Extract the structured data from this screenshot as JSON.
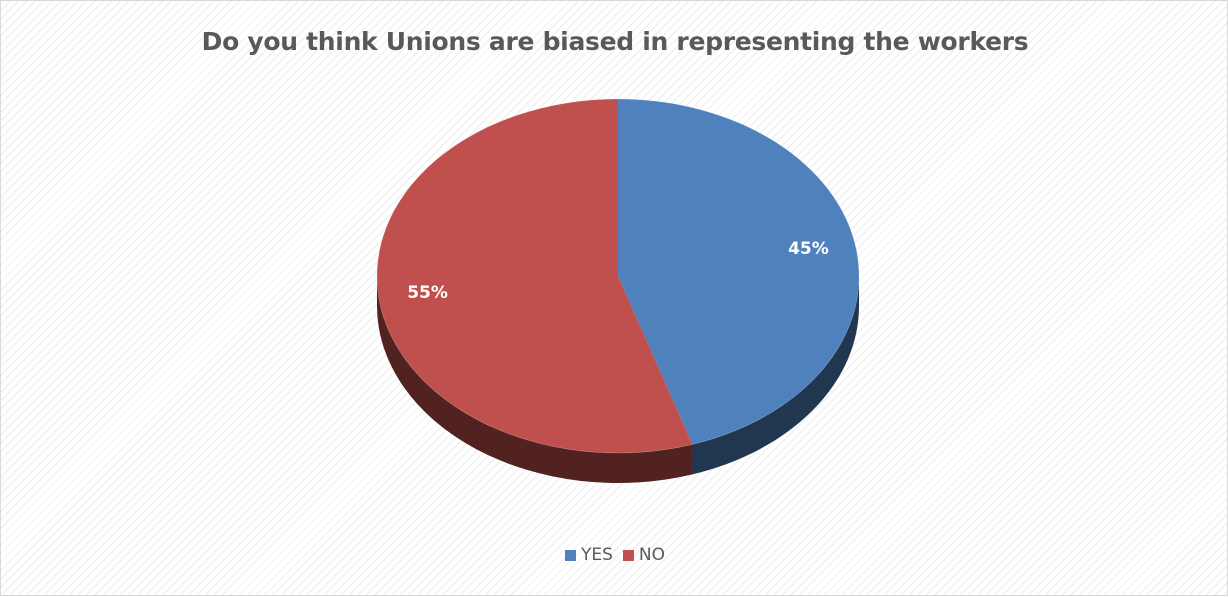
{
  "chart_data": {
    "type": "pie",
    "title": "Do you think Unions are biased in representing the workers",
    "categories": [
      "YES",
      "NO"
    ],
    "values": [
      45,
      55
    ],
    "data_labels": [
      "45%",
      "55%"
    ],
    "colors": [
      "#4f81bd",
      "#c0504d"
    ],
    "legend_position": "bottom",
    "style": "3d"
  }
}
